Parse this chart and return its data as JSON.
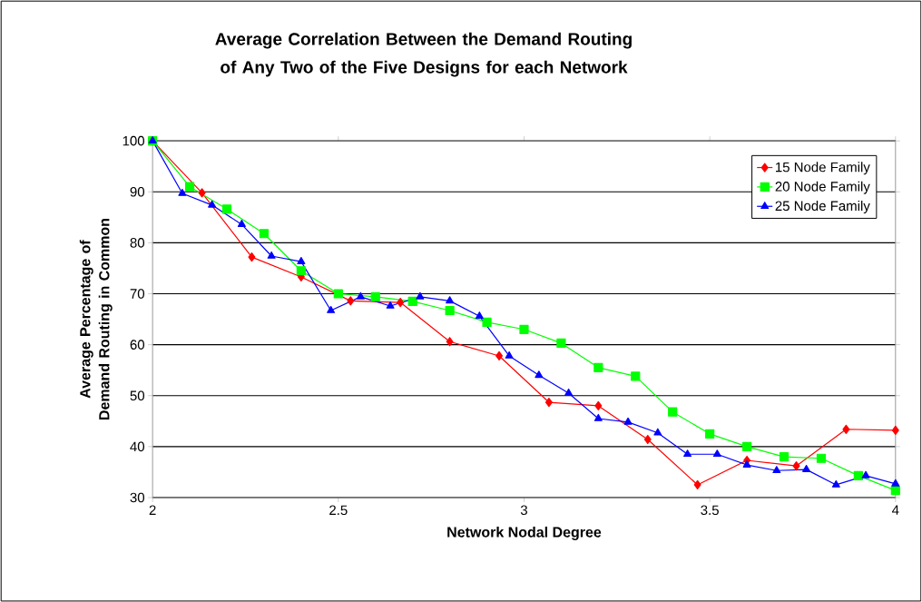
{
  "chart_data": {
    "type": "line",
    "title": "Average Correlation Between the Demand Routing of Any Two of the Five Designs for each Network",
    "xlabel": "Network Nodal Degree",
    "ylabel": "Average Percentage of Demand Routing in Common",
    "series": [
      {
        "name": "15 Node Family",
        "color": "#ff0000",
        "marker": "diamond",
        "x": [
          2,
          2.133,
          2.267,
          2.4,
          2.533,
          2.667,
          2.8,
          2.933,
          3.067,
          3.2,
          3.333,
          3.467,
          3.6,
          3.733,
          3.867,
          4
        ],
        "values": [
          100,
          89.8,
          77.2,
          73.3,
          68.6,
          68.3,
          60.6,
          57.8,
          48.7,
          48,
          41.4,
          32.5,
          37.3,
          36.2,
          43.4,
          43.2
        ]
      },
      {
        "name": "20 Node Family",
        "color": "#00ff00",
        "marker": "square",
        "x": [
          2,
          2.1,
          2.2,
          2.3,
          2.4,
          2.5,
          2.6,
          2.7,
          2.8,
          2.9,
          3,
          3.1,
          3.2,
          3.3,
          3.4,
          3.5,
          3.6,
          3.7,
          3.8,
          3.9,
          4
        ],
        "values": [
          100,
          91,
          86.6,
          81.8,
          74.5,
          70,
          69.4,
          68.5,
          66.7,
          64.4,
          63,
          60.3,
          55.5,
          53.8,
          46.8,
          42.5,
          40,
          38,
          37.7,
          34.3,
          31.4
        ]
      },
      {
        "name": "25 Node Family",
        "color": "#0000ff",
        "marker": "triangle",
        "x": [
          2,
          2.08,
          2.16,
          2.24,
          2.32,
          2.4,
          2.48,
          2.56,
          2.64,
          2.72,
          2.8,
          2.88,
          2.96,
          3.04,
          3.12,
          3.2,
          3.28,
          3.36,
          3.44,
          3.52,
          3.6,
          3.68,
          3.76,
          3.84,
          3.92,
          4
        ],
        "values": [
          100,
          89.7,
          87.4,
          83.6,
          77.4,
          76.3,
          66.7,
          69.4,
          67.6,
          69.4,
          68.6,
          65.6,
          57.8,
          54,
          50.5,
          45.5,
          44.8,
          42.7,
          38.5,
          38.5,
          36.4,
          35.3,
          35.5,
          32.5,
          34.3,
          32.7
        ]
      }
    ],
    "xlim": [
      2,
      4
    ],
    "xticks": [
      2,
      2.5,
      3,
      3.5,
      4
    ],
    "ylim": [
      30,
      100
    ],
    "yticks": [
      30,
      40,
      50,
      60,
      70,
      80,
      90,
      100
    ],
    "grid": "y",
    "legend": "top right",
    "line_style": "solid"
  }
}
